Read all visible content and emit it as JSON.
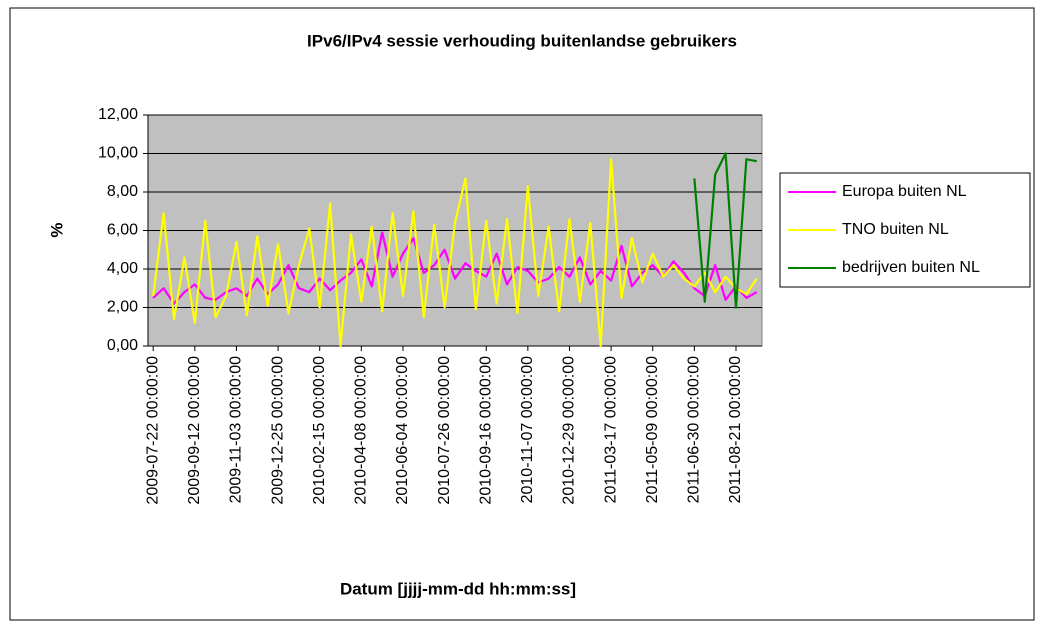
{
  "chart_data": {
    "type": "line",
    "title": "IPv6/IPv4 sessie verhouding buitenlandse gebruikers",
    "x_label": "Datum [jjjj-mm-dd hh:mm:ss]",
    "y_label": "%",
    "categories": [
      "2009-07-22 00:00:00",
      null,
      null,
      null,
      "2009-09-12 00:00:00",
      null,
      null,
      null,
      "2009-11-03 00:00:00",
      null,
      null,
      null,
      "2009-12-25 00:00:00",
      null,
      null,
      null,
      "2010-02-15 00:00:00",
      null,
      null,
      null,
      "2010-04-08 00:00:00",
      null,
      null,
      null,
      "2010-06-04 00:00:00",
      null,
      null,
      null,
      "2010-07-26 00:00:00",
      null,
      null,
      null,
      "2010-09-16 00:00:00",
      null,
      null,
      null,
      "2010-11-07 00:00:00",
      null,
      null,
      null,
      "2010-12-29 00:00:00",
      null,
      null,
      null,
      "2011-03-17 00:00:00",
      null,
      null,
      null,
      "2011-05-09 00:00:00",
      null,
      null,
      null,
      "2011-06-30 00:00:00",
      null,
      null,
      null,
      "2011-08-21 00:00:00",
      null,
      null
    ],
    "series": [
      {
        "name": "Europa buiten NL",
        "color": "#ff00ff",
        "values": [
          2.5,
          3,
          2.2,
          2.8,
          3.2,
          2.5,
          2.4,
          2.8,
          3,
          2.6,
          3.5,
          2.7,
          3.2,
          4.2,
          3,
          2.8,
          3.5,
          2.9,
          3.4,
          3.8,
          4.5,
          3.1,
          5.9,
          3.6,
          4.8,
          5.6,
          3.8,
          4.2,
          5,
          3.5,
          4.3,
          3.9,
          3.6,
          4.8,
          3.2,
          4.1,
          3.9,
          3.3,
          3.5,
          4.1,
          3.6,
          4.6,
          3.2,
          3.9,
          3.4,
          5.2,
          3.1,
          3.8,
          4.2,
          3.6,
          4.4,
          3.8,
          3,
          2.6,
          4.2,
          2.4,
          3.1,
          2.5,
          2.8
        ]
      },
      {
        "name": "TNO buiten NL",
        "color": "#ffff00",
        "values": [
          2.6,
          6.9,
          1.4,
          4.6,
          1.2,
          6.5,
          1.5,
          2.6,
          5.4,
          1.6,
          5.7,
          2.1,
          5.3,
          1.7,
          4.2,
          6.1,
          2,
          7.4,
          0,
          5.8,
          2.3,
          6.2,
          1.8,
          6.9,
          2.6,
          7,
          1.5,
          6.3,
          2,
          6.4,
          8.7,
          1.9,
          6.5,
          2.2,
          6.6,
          1.7,
          8.3,
          2.6,
          6.2,
          1.8,
          6.6,
          2.3,
          6.4,
          0,
          9.7,
          2.5,
          5.6,
          3.3,
          4.8,
          3.6,
          4.2,
          3.5,
          3.1,
          3.8,
          2.8,
          3.6,
          3,
          2.7,
          3.5
        ]
      },
      {
        "name": "bedrijven buiten NL",
        "color": "#008000",
        "values": [
          null,
          null,
          null,
          null,
          null,
          null,
          null,
          null,
          null,
          null,
          null,
          null,
          null,
          null,
          null,
          null,
          null,
          null,
          null,
          null,
          null,
          null,
          null,
          null,
          null,
          null,
          null,
          null,
          null,
          null,
          null,
          null,
          null,
          null,
          null,
          null,
          null,
          null,
          null,
          null,
          null,
          null,
          null,
          null,
          null,
          null,
          null,
          null,
          null,
          null,
          null,
          null,
          8.7,
          2.3,
          8.9,
          10,
          2,
          9.7,
          9.6
        ]
      }
    ],
    "ylim": [
      0,
      12
    ],
    "yticks": [
      {
        "value": 0,
        "label": "0,00"
      },
      {
        "value": 2,
        "label": "2,00"
      },
      {
        "value": 4,
        "label": "4,00"
      },
      {
        "value": 6,
        "label": "6,00"
      },
      {
        "value": 8,
        "label": "8,00"
      },
      {
        "value": 10,
        "label": "10,00"
      },
      {
        "value": 12,
        "label": "12,00"
      }
    ],
    "grid": true,
    "legend": "right",
    "plot_background": "#c0c0c0"
  }
}
